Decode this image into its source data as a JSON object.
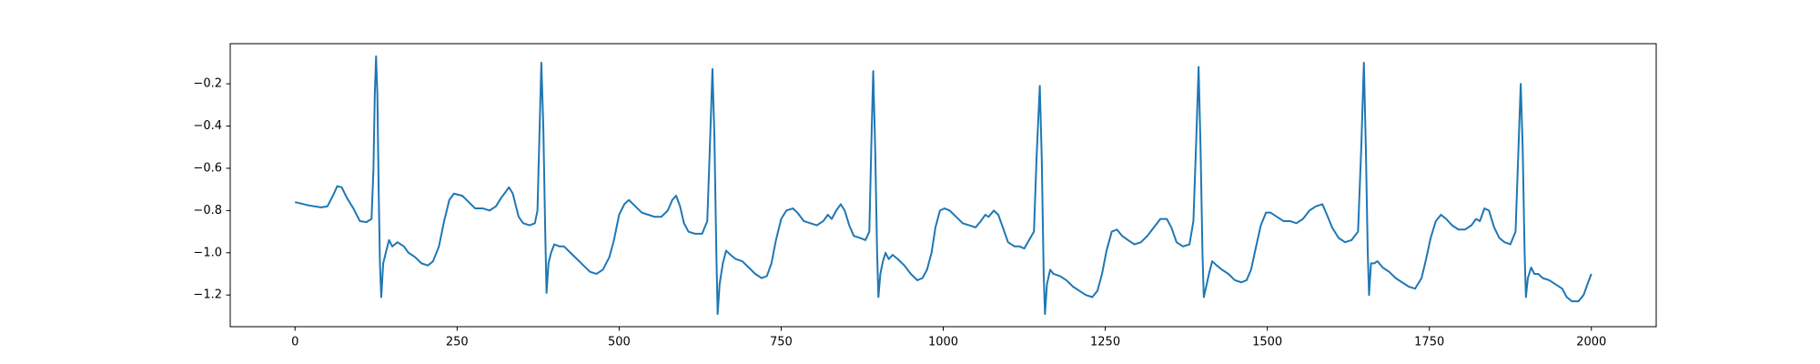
{
  "chart_data": {
    "type": "line",
    "x": [
      0,
      20,
      40,
      50,
      60,
      65,
      72,
      80,
      90,
      100,
      110,
      118,
      121,
      123,
      125,
      127,
      129,
      131,
      133,
      136,
      140,
      145,
      150,
      158,
      168,
      175,
      185,
      195,
      205,
      213,
      222,
      230,
      238,
      245,
      258,
      268,
      278,
      290,
      300,
      310,
      318,
      323,
      330,
      336,
      340,
      345,
      352,
      362,
      370,
      374,
      377,
      380,
      383,
      386,
      388,
      391,
      395,
      400,
      408,
      415,
      425,
      435,
      445,
      455,
      465,
      475,
      485,
      492,
      500,
      508,
      515,
      525,
      535,
      545,
      555,
      565,
      575,
      582,
      588,
      594,
      600,
      607,
      617,
      628,
      636,
      640,
      644,
      647,
      650,
      652,
      655,
      660,
      665,
      672,
      680,
      690,
      700,
      710,
      720,
      728,
      735,
      742,
      750,
      758,
      768,
      775,
      785,
      795,
      805,
      815,
      822,
      828,
      835,
      842,
      848,
      855,
      862,
      872,
      880,
      886,
      889,
      892,
      895,
      898,
      900,
      903,
      907,
      911,
      916,
      922,
      930,
      940,
      950,
      960,
      968,
      975,
      982,
      988,
      995,
      1002,
      1010,
      1020,
      1030,
      1040,
      1050,
      1058,
      1065,
      1070,
      1078,
      1085,
      1092,
      1100,
      1110,
      1118,
      1125,
      1140,
      1144,
      1149,
      1152,
      1155,
      1157,
      1160,
      1165,
      1170,
      1180,
      1190,
      1200,
      1210,
      1220,
      1230,
      1238,
      1245,
      1252,
      1260,
      1268,
      1276,
      1285,
      1295,
      1305,
      1315,
      1325,
      1335,
      1345,
      1352,
      1360,
      1370,
      1380,
      1386,
      1390,
      1394,
      1397,
      1400,
      1402,
      1405,
      1410,
      1415,
      1422,
      1430,
      1440,
      1450,
      1460,
      1468,
      1475,
      1482,
      1490,
      1498,
      1505,
      1515,
      1525,
      1535,
      1545,
      1555,
      1565,
      1575,
      1585,
      1592,
      1600,
      1610,
      1620,
      1630,
      1640,
      1645,
      1649,
      1652,
      1655,
      1657,
      1660,
      1665,
      1670,
      1678,
      1688,
      1698,
      1708,
      1718,
      1728,
      1738,
      1745,
      1752,
      1760,
      1768,
      1776,
      1785,
      1795,
      1805,
      1815,
      1822,
      1828,
      1835,
      1842,
      1850,
      1858,
      1866,
      1875,
      1883,
      1887,
      1891,
      1894,
      1897,
      1899,
      1902,
      1907,
      1912,
      1918,
      1925,
      1935,
      1945,
      1955,
      1962,
      1970,
      1980,
      1988,
      1995,
      2000
    ],
    "series": [
      {
        "color": "#1f77b4",
        "values": [
          -0.76,
          -0.775,
          -0.785,
          -0.78,
          -0.72,
          -0.685,
          -0.69,
          -0.74,
          -0.79,
          -0.85,
          -0.855,
          -0.84,
          -0.6,
          -0.25,
          -0.07,
          -0.25,
          -0.7,
          -1.05,
          -1.21,
          -1.05,
          -1.0,
          -0.94,
          -0.97,
          -0.95,
          -0.97,
          -1.0,
          -1.02,
          -1.05,
          -1.06,
          -1.04,
          -0.97,
          -0.85,
          -0.75,
          -0.72,
          -0.73,
          -0.76,
          -0.79,
          -0.79,
          -0.8,
          -0.78,
          -0.74,
          -0.72,
          -0.69,
          -0.72,
          -0.77,
          -0.83,
          -0.86,
          -0.87,
          -0.86,
          -0.8,
          -0.45,
          -0.1,
          -0.4,
          -0.9,
          -1.19,
          -1.05,
          -1.0,
          -0.96,
          -0.97,
          -0.97,
          -1.0,
          -1.03,
          -1.06,
          -1.09,
          -1.1,
          -1.08,
          -1.02,
          -0.94,
          -0.82,
          -0.77,
          -0.75,
          -0.78,
          -0.81,
          -0.82,
          -0.83,
          -0.83,
          -0.8,
          -0.75,
          -0.73,
          -0.78,
          -0.86,
          -0.9,
          -0.91,
          -0.91,
          -0.85,
          -0.5,
          -0.13,
          -0.45,
          -1.0,
          -1.29,
          -1.15,
          -1.05,
          -0.99,
          -1.01,
          -1.03,
          -1.04,
          -1.07,
          -1.1,
          -1.12,
          -1.11,
          -1.05,
          -0.94,
          -0.84,
          -0.8,
          -0.79,
          -0.81,
          -0.85,
          -0.86,
          -0.87,
          -0.85,
          -0.82,
          -0.84,
          -0.8,
          -0.77,
          -0.8,
          -0.87,
          -0.92,
          -0.93,
          -0.94,
          -0.9,
          -0.5,
          -0.14,
          -0.5,
          -1.0,
          -1.21,
          -1.1,
          -1.04,
          -1.0,
          -1.03,
          -1.01,
          -1.03,
          -1.06,
          -1.1,
          -1.13,
          -1.12,
          -1.08,
          -1.0,
          -0.88,
          -0.8,
          -0.79,
          -0.8,
          -0.83,
          -0.86,
          -0.87,
          -0.88,
          -0.85,
          -0.82,
          -0.83,
          -0.8,
          -0.82,
          -0.88,
          -0.95,
          -0.97,
          -0.97,
          -0.98,
          -0.9,
          -0.55,
          -0.21,
          -0.55,
          -1.1,
          -1.29,
          -1.15,
          -1.08,
          -1.1,
          -1.11,
          -1.13,
          -1.16,
          -1.18,
          -1.2,
          -1.21,
          -1.18,
          -1.1,
          -0.99,
          -0.9,
          -0.89,
          -0.92,
          -0.94,
          -0.96,
          -0.95,
          -0.92,
          -0.88,
          -0.84,
          -0.84,
          -0.88,
          -0.95,
          -0.97,
          -0.96,
          -0.85,
          -0.5,
          -0.12,
          -0.5,
          -1.0,
          -1.21,
          -1.17,
          -1.1,
          -1.04,
          -1.06,
          -1.08,
          -1.1,
          -1.13,
          -1.14,
          -1.13,
          -1.08,
          -0.98,
          -0.87,
          -0.81,
          -0.81,
          -0.83,
          -0.85,
          -0.85,
          -0.86,
          -0.84,
          -0.8,
          -0.78,
          -0.77,
          -0.82,
          -0.88,
          -0.93,
          -0.95,
          -0.94,
          -0.9,
          -0.5,
          -0.1,
          -0.5,
          -1.0,
          -1.2,
          -1.05,
          -1.05,
          -1.04,
          -1.07,
          -1.09,
          -1.12,
          -1.14,
          -1.16,
          -1.17,
          -1.12,
          -1.03,
          -0.93,
          -0.85,
          -0.82,
          -0.84,
          -0.87,
          -0.89,
          -0.89,
          -0.87,
          -0.84,
          -0.85,
          -0.79,
          -0.8,
          -0.88,
          -0.93,
          -0.95,
          -0.96,
          -0.9,
          -0.55,
          -0.2,
          -0.5,
          -1.0,
          -1.21,
          -1.12,
          -1.07,
          -1.1,
          -1.1,
          -1.12,
          -1.13,
          -1.15,
          -1.17,
          -1.21,
          -1.23,
          -1.23,
          -1.2,
          -1.14,
          -1.1
        ]
      }
    ],
    "xlim": [
      -100,
      2100
    ],
    "xticks": [
      0,
      250,
      500,
      750,
      1000,
      1250,
      1500,
      1750,
      2000
    ],
    "ylim": [
      -1.35,
      -0.01
    ],
    "yticks": [
      {
        "value": -1.2,
        "label": "−1.2"
      },
      {
        "value": -1.0,
        "label": "−1.0"
      },
      {
        "value": -0.8,
        "label": "−0.8"
      },
      {
        "value": -0.6,
        "label": "−0.6"
      },
      {
        "value": -0.4,
        "label": "−0.4"
      },
      {
        "value": -0.2,
        "label": "−0.2"
      }
    ]
  }
}
